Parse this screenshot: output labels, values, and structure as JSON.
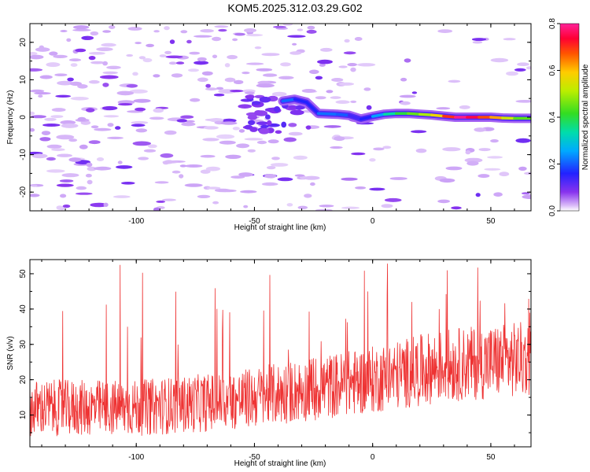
{
  "title": "KOM5.2025.312.03.29.G02",
  "chart_data": [
    {
      "type": "heatmap",
      "xlabel": "Height of straight line (km)",
      "ylabel": "Frequency (Hz)",
      "xlim": [
        -145,
        67
      ],
      "ylim": [
        -25,
        25
      ],
      "xticks": [
        -100,
        -50,
        0,
        50
      ],
      "yticks": [
        -20,
        -10,
        0,
        10,
        20
      ],
      "colorbar": {
        "label": "Normalized spectral amplitude",
        "range": [
          0,
          0.8
        ],
        "ticks": [
          0.0,
          0.2,
          0.4,
          0.6,
          0.8
        ]
      },
      "ridge": [
        {
          "x": -38,
          "y": 4.3,
          "amp": 0.24
        },
        {
          "x": -33,
          "y": 4.8,
          "amp": 0.18
        },
        {
          "x": -28,
          "y": 4.0,
          "amp": 0.14
        },
        {
          "x": -23,
          "y": 1.0,
          "amp": 0.18
        },
        {
          "x": -15,
          "y": 0.8,
          "amp": 0.25
        },
        {
          "x": -10,
          "y": 0.5,
          "amp": 0.15
        },
        {
          "x": -5,
          "y": -0.5,
          "amp": 0.12
        },
        {
          "x": 0,
          "y": 0.2,
          "amp": 0.2
        },
        {
          "x": 5,
          "y": 0.8,
          "amp": 0.3
        },
        {
          "x": 10,
          "y": 1.0,
          "amp": 0.38
        },
        {
          "x": 15,
          "y": 1.0,
          "amp": 0.42
        },
        {
          "x": 20,
          "y": 0.8,
          "amp": 0.48
        },
        {
          "x": 25,
          "y": 0.6,
          "amp": 0.52
        },
        {
          "x": 30,
          "y": 0.3,
          "amp": 0.62
        },
        {
          "x": 35,
          "y": 0.0,
          "amp": 0.78
        },
        {
          "x": 40,
          "y": 0.0,
          "amp": 0.8
        },
        {
          "x": 45,
          "y": 0.0,
          "amp": 0.7
        },
        {
          "x": 50,
          "y": 0.0,
          "amp": 0.66
        },
        {
          "x": 55,
          "y": -0.2,
          "amp": 0.58
        },
        {
          "x": 60,
          "y": -0.3,
          "amp": 0.48
        },
        {
          "x": 67,
          "y": -0.3,
          "amp": 0.4
        }
      ]
    },
    {
      "type": "line",
      "xlabel": "Height of straight line (km)",
      "ylabel": "SNR (v/v)",
      "xlim": [
        -145,
        67
      ],
      "ylim": [
        1,
        54
      ],
      "xticks": [
        -100,
        -50,
        0,
        50
      ],
      "yticks": [
        10,
        20,
        30,
        40,
        50
      ],
      "color": "#ee3333",
      "trend": [
        {
          "x": -145,
          "y": 12
        },
        {
          "x": -100,
          "y": 12
        },
        {
          "x": -60,
          "y": 14
        },
        {
          "x": -30,
          "y": 17
        },
        {
          "x": 0,
          "y": 20
        },
        {
          "x": 30,
          "y": 24
        },
        {
          "x": 67,
          "y": 26
        }
      ],
      "noise_amplitude": 8,
      "spike_range": [
        28,
        54
      ]
    }
  ]
}
